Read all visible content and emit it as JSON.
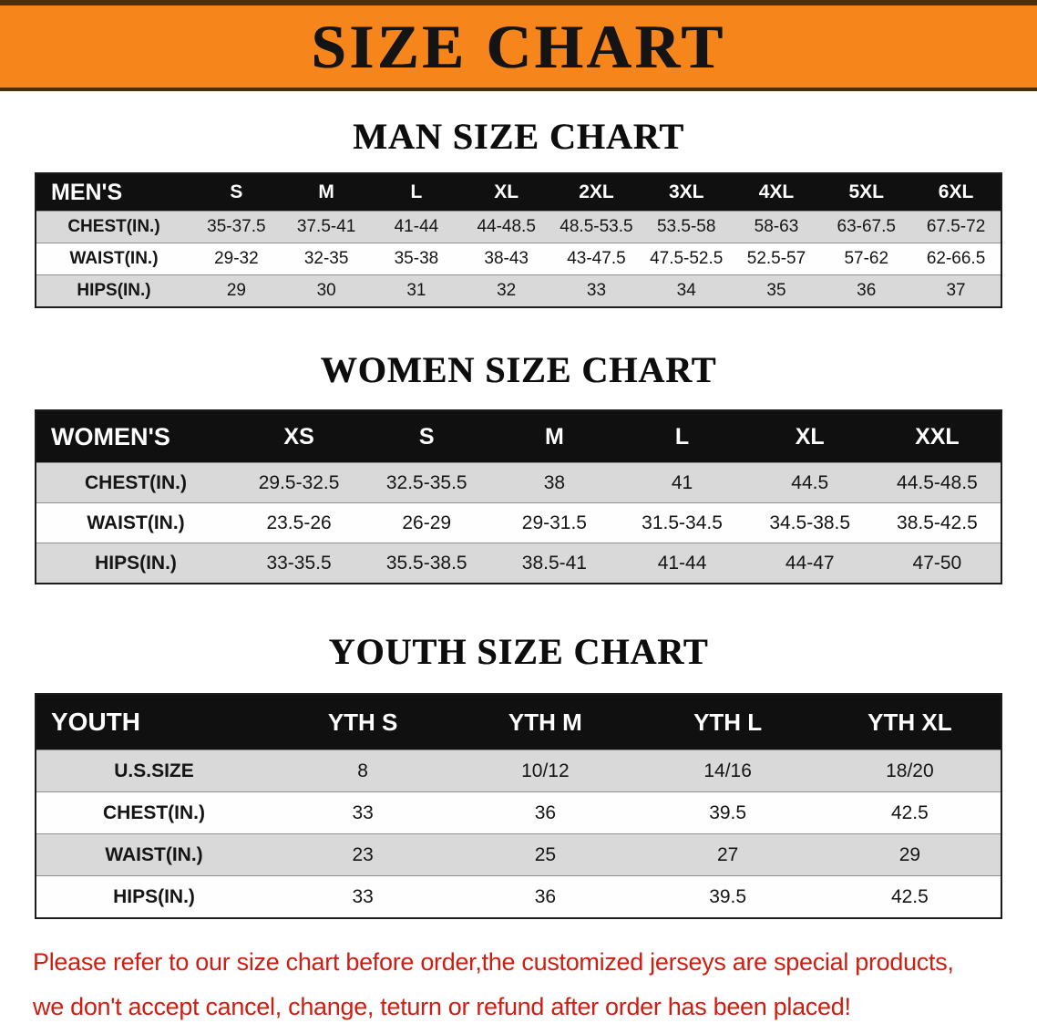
{
  "banner": {
    "title": "SIZE CHART"
  },
  "colors": {
    "banner_bg": "#f6861c",
    "banner_border": "#4e2e06",
    "table_header_bg": "#101010",
    "row_stripe_gray": "#d9d9d9",
    "disclaimer_red": "#cf1d12"
  },
  "chart_data": [
    {
      "type": "table",
      "title": "MAN SIZE CHART",
      "columns": [
        "MEN'S",
        "S",
        "M",
        "L",
        "XL",
        "2XL",
        "3XL",
        "4XL",
        "5XL",
        "6XL"
      ],
      "rows": [
        [
          "CHEST(IN.)",
          "35-37.5",
          "37.5-41",
          "41-44",
          "44-48.5",
          "48.5-53.5",
          "53.5-58",
          "58-63",
          "63-67.5",
          "67.5-72"
        ],
        [
          "WAIST(IN.)",
          "29-32",
          "32-35",
          "35-38",
          "38-43",
          "43-47.5",
          "47.5-52.5",
          "52.5-57",
          "57-62",
          "62-66.5"
        ],
        [
          "HIPS(IN.)",
          "29",
          "30",
          "31",
          "32",
          "33",
          "34",
          "35",
          "36",
          "37"
        ]
      ]
    },
    {
      "type": "table",
      "title": "WOMEN SIZE CHART",
      "columns": [
        "WOMEN'S",
        "XS",
        "S",
        "M",
        "L",
        "XL",
        "XXL"
      ],
      "rows": [
        [
          "CHEST(IN.)",
          "29.5-32.5",
          "32.5-35.5",
          "38",
          "41",
          "44.5",
          "44.5-48.5"
        ],
        [
          "WAIST(IN.)",
          "23.5-26",
          "26-29",
          "29-31.5",
          "31.5-34.5",
          "34.5-38.5",
          "38.5-42.5"
        ],
        [
          "HIPS(IN.)",
          "33-35.5",
          "35.5-38.5",
          "38.5-41",
          "41-44",
          "44-47",
          "47-50"
        ]
      ]
    },
    {
      "type": "table",
      "title": "YOUTH SIZE CHART",
      "columns": [
        "YOUTH",
        "YTH S",
        "YTH M",
        "YTH L",
        "YTH XL"
      ],
      "rows": [
        [
          "U.S.SIZE",
          "8",
          "10/12",
          "14/16",
          "18/20"
        ],
        [
          "CHEST(IN.)",
          "33",
          "36",
          "39.5",
          "42.5"
        ],
        [
          "WAIST(IN.)",
          "23",
          "25",
          "27",
          "29"
        ],
        [
          "HIPS(IN.)",
          "33",
          "36",
          "39.5",
          "42.5"
        ]
      ]
    }
  ],
  "footer": {
    "line1": "Please refer to our size chart before order,the customized jerseys are special products,",
    "line2": "we don't accept cancel, change, teturn or refund after order has been placed!"
  }
}
